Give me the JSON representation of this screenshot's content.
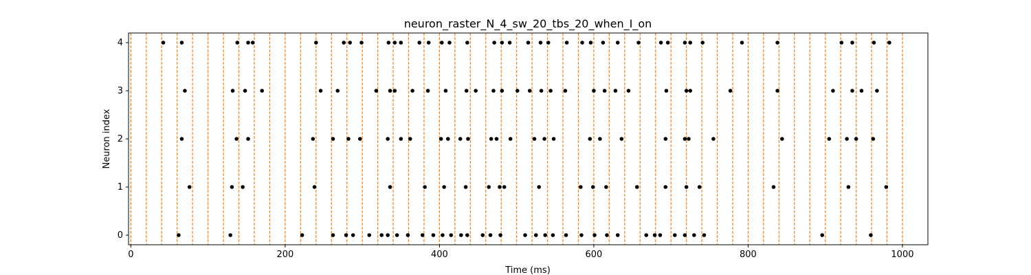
{
  "chart_data": {
    "type": "scatter",
    "title": "neuron_raster_N_4_sw_20_tbs_20_when_I_on",
    "xlabel": "Time (ms)",
    "ylabel": "Neuron index",
    "xlim": [
      -3,
      1033
    ],
    "ylim": [
      -0.2,
      4.2
    ],
    "xticks": [
      0,
      200,
      400,
      600,
      800,
      1000
    ],
    "yticks": [
      0,
      1,
      2,
      3,
      4
    ],
    "grid": false,
    "marker_color": "#000000",
    "line_color": "#ff7f0e",
    "vlines_x": [
      0,
      20,
      40,
      60,
      80,
      100,
      120,
      140,
      160,
      180,
      200,
      220,
      240,
      260,
      280,
      300,
      320,
      340,
      360,
      380,
      400,
      420,
      440,
      460,
      480,
      500,
      520,
      540,
      560,
      580,
      600,
      620,
      640,
      660,
      680,
      700,
      720,
      740,
      760,
      780,
      800,
      820,
      840,
      860,
      880,
      900,
      920,
      940,
      960,
      980,
      1000
    ],
    "series": [
      {
        "neuron": 0,
        "x": [
          62,
          129,
          222,
          262,
          279,
          288,
          309,
          325,
          333,
          345,
          359,
          378,
          392,
          404,
          415,
          428,
          436,
          456,
          466,
          479,
          511,
          525,
          537,
          547,
          564,
          584,
          601,
          617,
          631,
          668,
          679,
          686,
          705,
          718,
          730,
          743,
          896,
          959
        ]
      },
      {
        "neuron": 1,
        "x": [
          76,
          131,
          145,
          238,
          336,
          381,
          406,
          434,
          464,
          478,
          484,
          529,
          583,
          599,
          616,
          656,
          693,
          720,
          737,
          833,
          930,
          979
        ]
      },
      {
        "neuron": 2,
        "x": [
          66,
          137,
          152,
          236,
          262,
          282,
          297,
          333,
          350,
          362,
          402,
          411,
          427,
          437,
          467,
          474,
          492,
          523,
          536,
          548,
          595,
          608,
          636,
          693,
          718,
          723,
          755,
          844,
          905,
          928,
          940,
          962
        ]
      },
      {
        "neuron": 3,
        "x": [
          70,
          132,
          148,
          170,
          246,
          268,
          318,
          336,
          342,
          365,
          385,
          408,
          435,
          447,
          470,
          481,
          501,
          517,
          532,
          544,
          563,
          600,
          614,
          628,
          645,
          694,
          720,
          725,
          777,
          838,
          910,
          935,
          947,
          967
        ]
      },
      {
        "neuron": 4,
        "x": [
          42,
          66,
          138,
          152,
          158,
          240,
          276,
          284,
          299,
          334,
          342,
          350,
          374,
          386,
          403,
          413,
          436,
          471,
          481,
          491,
          515,
          531,
          541,
          565,
          585,
          596,
          612,
          631,
          658,
          687,
          696,
          718,
          725,
          741,
          792,
          838,
          921,
          935,
          963,
          983
        ]
      }
    ]
  }
}
